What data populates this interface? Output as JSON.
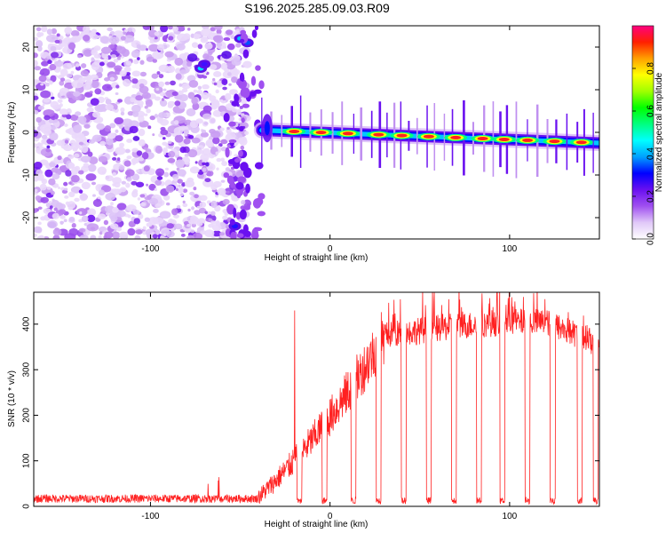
{
  "title": "S196.2025.285.09.03.R09",
  "chart_data": [
    {
      "type": "heatmap",
      "name": "spectrogram",
      "xlabel": "Height of straight line (km)",
      "ylabel": "Frequency (Hz)",
      "xlim": [
        -165,
        150
      ],
      "ylim": [
        -25,
        25
      ],
      "xticks": [
        -100,
        0,
        100
      ],
      "yticks": [
        -20,
        -10,
        0,
        10,
        20
      ],
      "colorbar": {
        "label": "Normalized spectral amplitude",
        "range": [
          0,
          1
        ],
        "ticks": [
          0.0,
          0.2,
          0.4,
          0.6,
          0.8
        ],
        "colors": [
          "#ffffff",
          "#e0c8f8",
          "#a050f0",
          "#6a10f0",
          "#0000ff",
          "#00a0ff",
          "#00ffff",
          "#00ff80",
          "#00ff00",
          "#a0ff00",
          "#ffff00",
          "#ffa000",
          "#ff2000",
          "#ff0080"
        ]
      },
      "line_tone": {
        "start_km": -38,
        "end_km": 150,
        "freq_start": 0.5,
        "freq_end": -2.5,
        "peaks_km": [
          -20,
          -5,
          10,
          27,
          40,
          55,
          70,
          85,
          97,
          110,
          125,
          140
        ]
      }
    },
    {
      "type": "line",
      "name": "snr",
      "xlabel": "Height of straight line (km)",
      "ylabel": "SNR (10 * v/v)",
      "xlim": [
        -165,
        150
      ],
      "ylim": [
        0,
        470
      ],
      "xticks": [
        -100,
        0,
        100
      ],
      "yticks": [
        0,
        100,
        200,
        300,
        400
      ],
      "color": "#ff2020",
      "noise_floor": 17,
      "plateau": 375,
      "dropouts_km": [
        -17,
        -3,
        13,
        27,
        41,
        55,
        69,
        83,
        96,
        110,
        124,
        139,
        148
      ]
    }
  ]
}
